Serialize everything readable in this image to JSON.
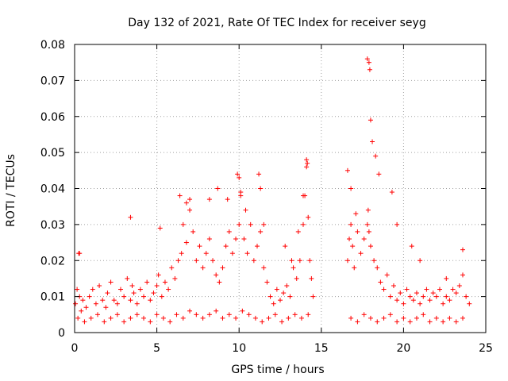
{
  "chart_data": {
    "type": "scatter",
    "title": "Day 132 of 2021, Rate Of TEC Index for receiver seyg",
    "xlabel": "GPS time / hours",
    "ylabel": "ROTI / TECUs",
    "xlim": [
      0,
      25
    ],
    "ylim": [
      0,
      0.08
    ],
    "x_ticks": [
      0,
      5,
      10,
      15,
      20,
      25
    ],
    "x_tick_labels": [
      "0",
      "5",
      "10",
      "15",
      "20",
      "25"
    ],
    "y_ticks": [
      0,
      0.01,
      0.02,
      0.03,
      0.04,
      0.05,
      0.06,
      0.07,
      0.08
    ],
    "y_tick_labels": [
      "0",
      "0.01",
      "0.02",
      "0.03",
      "0.04",
      "0.05",
      "0.06",
      "0.07",
      "0.08"
    ],
    "grid": true,
    "marker": "+",
    "color": "#ff0000",
    "series": [
      {
        "name": "ROTI",
        "x": [
          0.05,
          0.15,
          0.25,
          0.3,
          0.4,
          0.5,
          0.7,
          0.9,
          1.1,
          1.3,
          1.5,
          1.7,
          1.9,
          2.0,
          2.2,
          2.4,
          2.6,
          2.8,
          3.0,
          3.2,
          3.4,
          3.5,
          3.6,
          3.8,
          4.0,
          4.2,
          4.4,
          4.6,
          4.8,
          5.0,
          5.1,
          5.3,
          5.5,
          5.7,
          5.9,
          6.1,
          6.3,
          6.5,
          6.6,
          6.8,
          7.0,
          7.2,
          7.4,
          7.6,
          7.8,
          8.0,
          8.2,
          8.4,
          8.6,
          8.8,
          9.0,
          9.2,
          9.4,
          9.6,
          9.8,
          10.0,
          10.1,
          10.3,
          10.5,
          10.7,
          10.9,
          11.1,
          11.3,
          11.5,
          11.7,
          11.9,
          12.1,
          12.3,
          12.5,
          12.7,
          12.9,
          13.1,
          13.3,
          13.5,
          13.7,
          13.9,
          14.0,
          14.1,
          14.2,
          14.3,
          14.4,
          14.5,
          16.6,
          16.7,
          16.8,
          16.9,
          17.0,
          17.2,
          17.4,
          17.6,
          17.8,
          17.85,
          17.9,
          18.0,
          18.2,
          18.4,
          18.6,
          18.8,
          19.0,
          19.2,
          19.4,
          19.6,
          19.8,
          20.0,
          20.2,
          20.4,
          20.6,
          20.8,
          21.0,
          21.2,
          21.4,
          21.6,
          21.8,
          22.0,
          22.2,
          22.4,
          22.6,
          22.8,
          23.0,
          23.2,
          23.4,
          23.6,
          23.8,
          24.0,
          0.2,
          0.6,
          1.0,
          1.4,
          1.8,
          2.2,
          2.6,
          3.0,
          3.4,
          3.8,
          4.2,
          4.6,
          5.0,
          5.4,
          5.8,
          6.2,
          6.6,
          7.0,
          7.4,
          7.8,
          8.2,
          8.6,
          9.0,
          9.4,
          9.8,
          10.2,
          10.6,
          11.0,
          11.4,
          11.8,
          12.2,
          12.6,
          13.0,
          13.4,
          13.8,
          14.2,
          16.8,
          17.2,
          17.6,
          18.0,
          18.4,
          18.8,
          19.2,
          19.6,
          20.0,
          20.4,
          20.8,
          21.2,
          21.6,
          22.0,
          22.4,
          22.8,
          23.2,
          23.6,
          0.3,
          3.4,
          5.2,
          6.4,
          6.8,
          7.0,
          8.2,
          8.7,
          9.3,
          9.9,
          10.0,
          10.1,
          10.4,
          11.2,
          11.3,
          11.5,
          12.8,
          13.2,
          13.6,
          13.9,
          14.1,
          14.15,
          16.6,
          16.8,
          17.1,
          17.8,
          17.9,
          17.95,
          18.0,
          18.1,
          18.3,
          18.5,
          19.3,
          19.6,
          20.5,
          21.0,
          22.6,
          23.6
        ],
        "y": [
          0.008,
          0.012,
          0.022,
          0.01,
          0.006,
          0.009,
          0.007,
          0.01,
          0.012,
          0.008,
          0.013,
          0.009,
          0.007,
          0.011,
          0.014,
          0.009,
          0.008,
          0.012,
          0.01,
          0.015,
          0.009,
          0.013,
          0.011,
          0.008,
          0.012,
          0.01,
          0.014,
          0.009,
          0.011,
          0.013,
          0.016,
          0.01,
          0.014,
          0.012,
          0.018,
          0.015,
          0.02,
          0.022,
          0.03,
          0.025,
          0.034,
          0.028,
          0.02,
          0.024,
          0.018,
          0.022,
          0.026,
          0.02,
          0.016,
          0.014,
          0.018,
          0.024,
          0.028,
          0.022,
          0.026,
          0.03,
          0.038,
          0.026,
          0.022,
          0.03,
          0.02,
          0.024,
          0.028,
          0.018,
          0.014,
          0.01,
          0.008,
          0.012,
          0.009,
          0.011,
          0.013,
          0.01,
          0.018,
          0.015,
          0.02,
          0.03,
          0.038,
          0.046,
          0.032,
          0.02,
          0.015,
          0.01,
          0.02,
          0.026,
          0.03,
          0.024,
          0.018,
          0.028,
          0.022,
          0.026,
          0.03,
          0.034,
          0.028,
          0.024,
          0.02,
          0.018,
          0.014,
          0.012,
          0.016,
          0.01,
          0.013,
          0.009,
          0.011,
          0.008,
          0.012,
          0.01,
          0.009,
          0.011,
          0.008,
          0.01,
          0.012,
          0.009,
          0.011,
          0.01,
          0.012,
          0.008,
          0.01,
          0.009,
          0.012,
          0.011,
          0.013,
          0.016,
          0.01,
          0.008,
          0.004,
          0.003,
          0.004,
          0.005,
          0.003,
          0.004,
          0.005,
          0.003,
          0.004,
          0.005,
          0.004,
          0.003,
          0.005,
          0.004,
          0.003,
          0.005,
          0.004,
          0.006,
          0.005,
          0.004,
          0.005,
          0.006,
          0.004,
          0.005,
          0.004,
          0.006,
          0.005,
          0.004,
          0.003,
          0.004,
          0.005,
          0.003,
          0.004,
          0.005,
          0.004,
          0.005,
          0.004,
          0.003,
          0.005,
          0.004,
          0.003,
          0.004,
          0.005,
          0.003,
          0.004,
          0.003,
          0.004,
          0.005,
          0.003,
          0.004,
          0.003,
          0.004,
          0.003,
          0.004,
          0.022,
          0.032,
          0.029,
          0.038,
          0.036,
          0.037,
          0.037,
          0.04,
          0.037,
          0.044,
          0.043,
          0.039,
          0.034,
          0.044,
          0.04,
          0.03,
          0.024,
          0.02,
          0.028,
          0.038,
          0.048,
          0.047,
          0.045,
          0.04,
          0.033,
          0.076,
          0.075,
          0.073,
          0.059,
          0.053,
          0.049,
          0.044,
          0.039,
          0.03,
          0.024,
          0.02,
          0.015,
          0.023
        ]
      }
    ]
  }
}
